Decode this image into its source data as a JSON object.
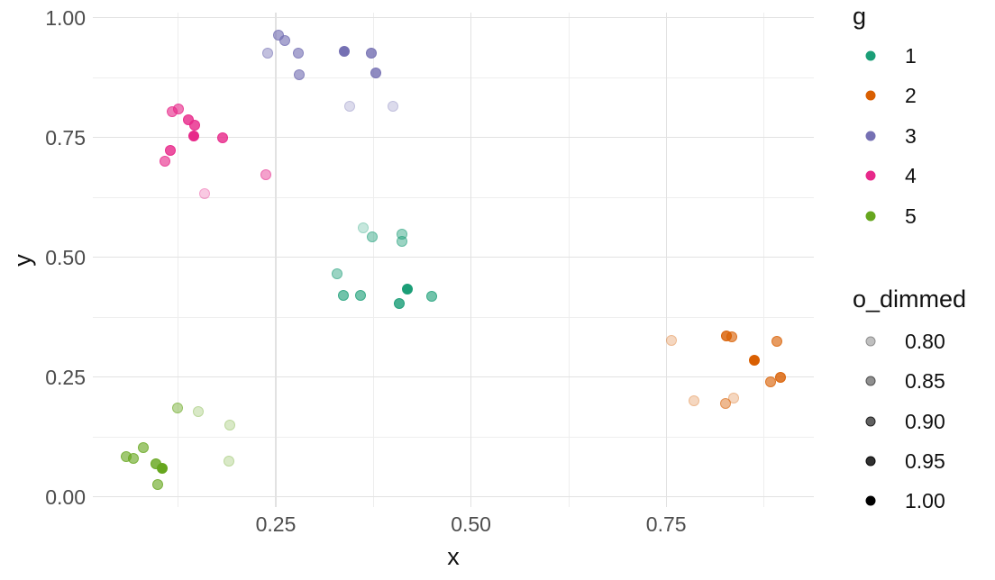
{
  "chart_data": {
    "type": "scatter",
    "title": "",
    "xlabel": "x",
    "ylabel": "y",
    "grid": true,
    "legend_position": "right",
    "xlim": [
      0.016,
      0.938
    ],
    "ylim": [
      -0.022,
      1.01
    ],
    "x_ticks": [
      0.25,
      0.5,
      0.75
    ],
    "x_tick_labels": [
      "0.25",
      "0.50",
      "0.75"
    ],
    "y_ticks": [
      0.0,
      0.25,
      0.5,
      0.75,
      1.0
    ],
    "y_tick_labels": [
      "0.00",
      "0.25",
      "0.50",
      "0.75",
      "1.00"
    ],
    "x_minor_breaks": [
      0.125,
      0.375,
      0.625,
      0.875
    ],
    "y_minor_breaks": [
      0.125,
      0.375,
      0.625,
      0.875
    ],
    "alpha_scale": {
      "domain": [
        0.8,
        1.0
      ],
      "range": [
        0.25,
        1.0
      ]
    },
    "series": [
      {
        "name": "1",
        "color": "#1B9E77",
        "points": [
          {
            "x": 0.362,
            "y": 0.562,
            "o": 0.8
          },
          {
            "x": 0.374,
            "y": 0.542,
            "o": 0.85
          },
          {
            "x": 0.412,
            "y": 0.547,
            "o": 0.85
          },
          {
            "x": 0.412,
            "y": 0.533,
            "o": 0.85
          },
          {
            "x": 0.328,
            "y": 0.465,
            "o": 0.85
          },
          {
            "x": 0.336,
            "y": 0.421,
            "o": 0.9
          },
          {
            "x": 0.359,
            "y": 0.421,
            "o": 0.9
          },
          {
            "x": 0.419,
            "y": 0.433,
            "o": 1.0
          },
          {
            "x": 0.408,
            "y": 0.403,
            "o": 0.95
          },
          {
            "x": 0.45,
            "y": 0.418,
            "o": 0.9
          }
        ]
      },
      {
        "name": "2",
        "color": "#D95F02",
        "points": [
          {
            "x": 0.757,
            "y": 0.326,
            "o": 0.8
          },
          {
            "x": 0.827,
            "y": 0.336,
            "o": 0.95
          },
          {
            "x": 0.834,
            "y": 0.333,
            "o": 0.9
          },
          {
            "x": 0.892,
            "y": 0.325,
            "o": 0.9
          },
          {
            "x": 0.863,
            "y": 0.284,
            "o": 1.0
          },
          {
            "x": 0.896,
            "y": 0.25,
            "o": 0.95
          },
          {
            "x": 0.884,
            "y": 0.239,
            "o": 0.9
          },
          {
            "x": 0.786,
            "y": 0.2,
            "o": 0.8
          },
          {
            "x": 0.836,
            "y": 0.205,
            "o": 0.8
          },
          {
            "x": 0.826,
            "y": 0.194,
            "o": 0.85
          }
        ]
      },
      {
        "name": "3",
        "color": "#7570B3",
        "points": [
          {
            "x": 0.253,
            "y": 0.963,
            "o": 0.9
          },
          {
            "x": 0.262,
            "y": 0.952,
            "o": 0.9
          },
          {
            "x": 0.24,
            "y": 0.926,
            "o": 0.85
          },
          {
            "x": 0.279,
            "y": 0.926,
            "o": 0.9
          },
          {
            "x": 0.338,
            "y": 0.93,
            "o": 1.0
          },
          {
            "x": 0.372,
            "y": 0.926,
            "o": 0.95
          },
          {
            "x": 0.28,
            "y": 0.881,
            "o": 0.9
          },
          {
            "x": 0.378,
            "y": 0.884,
            "o": 0.95
          },
          {
            "x": 0.345,
            "y": 0.815,
            "o": 0.8
          },
          {
            "x": 0.4,
            "y": 0.815,
            "o": 0.8
          }
        ]
      },
      {
        "name": "4",
        "color": "#E7298A",
        "points": [
          {
            "x": 0.117,
            "y": 0.804,
            "o": 0.9
          },
          {
            "x": 0.125,
            "y": 0.81,
            "o": 0.9
          },
          {
            "x": 0.138,
            "y": 0.787,
            "o": 0.95
          },
          {
            "x": 0.146,
            "y": 0.775,
            "o": 0.95
          },
          {
            "x": 0.145,
            "y": 0.752,
            "o": 1.0
          },
          {
            "x": 0.182,
            "y": 0.75,
            "o": 0.95
          },
          {
            "x": 0.115,
            "y": 0.722,
            "o": 0.95
          },
          {
            "x": 0.108,
            "y": 0.7,
            "o": 0.9
          },
          {
            "x": 0.237,
            "y": 0.672,
            "o": 0.85
          },
          {
            "x": 0.159,
            "y": 0.633,
            "o": 0.8
          }
        ]
      },
      {
        "name": "5",
        "color": "#66A61E",
        "points": [
          {
            "x": 0.124,
            "y": 0.185,
            "o": 0.85
          },
          {
            "x": 0.151,
            "y": 0.177,
            "o": 0.8
          },
          {
            "x": 0.191,
            "y": 0.149,
            "o": 0.8
          },
          {
            "x": 0.08,
            "y": 0.103,
            "o": 0.9
          },
          {
            "x": 0.058,
            "y": 0.083,
            "o": 0.9
          },
          {
            "x": 0.068,
            "y": 0.079,
            "o": 0.9
          },
          {
            "x": 0.096,
            "y": 0.069,
            "o": 0.95
          },
          {
            "x": 0.105,
            "y": 0.059,
            "o": 1.0
          },
          {
            "x": 0.19,
            "y": 0.074,
            "o": 0.8
          },
          {
            "x": 0.099,
            "y": 0.025,
            "o": 0.9
          }
        ]
      }
    ],
    "legends": [
      {
        "title": "g",
        "entries": [
          {
            "label": "1",
            "color": "#1B9E77"
          },
          {
            "label": "2",
            "color": "#D95F02"
          },
          {
            "label": "3",
            "color": "#7570B3"
          },
          {
            "label": "4",
            "color": "#E7298A"
          },
          {
            "label": "5",
            "color": "#66A61E"
          }
        ]
      },
      {
        "title": "o_dimmed",
        "entries": [
          {
            "label": "0.80",
            "color": "#000000",
            "alpha": 0.25
          },
          {
            "label": "0.85",
            "color": "#000000",
            "alpha": 0.4375
          },
          {
            "label": "0.90",
            "color": "#000000",
            "alpha": 0.625
          },
          {
            "label": "0.95",
            "color": "#000000",
            "alpha": 0.8125
          },
          {
            "label": "1.00",
            "color": "#000000",
            "alpha": 1.0
          }
        ]
      }
    ]
  }
}
